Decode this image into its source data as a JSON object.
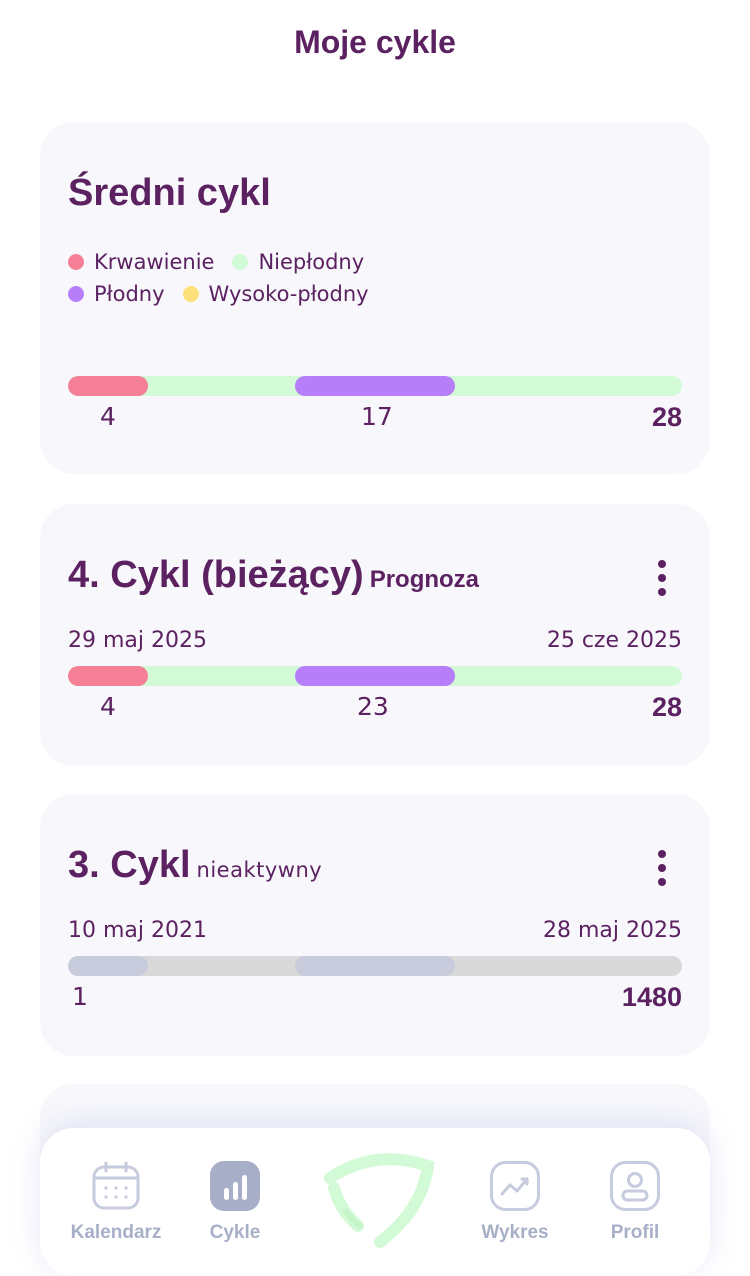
{
  "header": {
    "title": "Moje cykle"
  },
  "colors": {
    "bleeding": "#f57f96",
    "infertile": "#d3fad6",
    "fertile": "#b77ef9",
    "high_fertile": "#fbe07b",
    "inactive_bar": "#d9d9d9",
    "inactive_segment": "#c8cbdc",
    "primary": "#5b2160"
  },
  "average_cycle": {
    "title": "Średni cykl",
    "legend": [
      {
        "label": "Krwawienie",
        "color": "#f57f96"
      },
      {
        "label": "Niepłodny",
        "color": "#d3fad6"
      },
      {
        "label": "Płodny",
        "color": "#b77ef9"
      },
      {
        "label": "Wysoko-płodny",
        "color": "#fbe07b"
      }
    ],
    "bleeding_days": "4",
    "ovulation_day": "17",
    "length": "28"
  },
  "cycles": [
    {
      "title": "4. Cykl (bieżący)",
      "subtitle": "Prognoza",
      "start_date": "29 maj 2025",
      "end_date": "25 cze 2025",
      "bleeding_days": "4",
      "ovulation_day": "23",
      "length": "28"
    },
    {
      "title": "3. Cykl",
      "subtitle": "nieaktywny",
      "start_date": "10 maj 2021",
      "end_date": "28 maj 2025",
      "start_day": "1",
      "length": "1480"
    }
  ],
  "nav": {
    "items": [
      {
        "label": "Kalendarz",
        "icon": "calendar-icon"
      },
      {
        "label": "Cykle",
        "icon": "bar-chart-icon"
      },
      {
        "label": "",
        "icon": "center-logo-icon"
      },
      {
        "label": "Wykres",
        "icon": "trend-chart-icon"
      },
      {
        "label": "Profil",
        "icon": "profile-icon"
      }
    ]
  }
}
